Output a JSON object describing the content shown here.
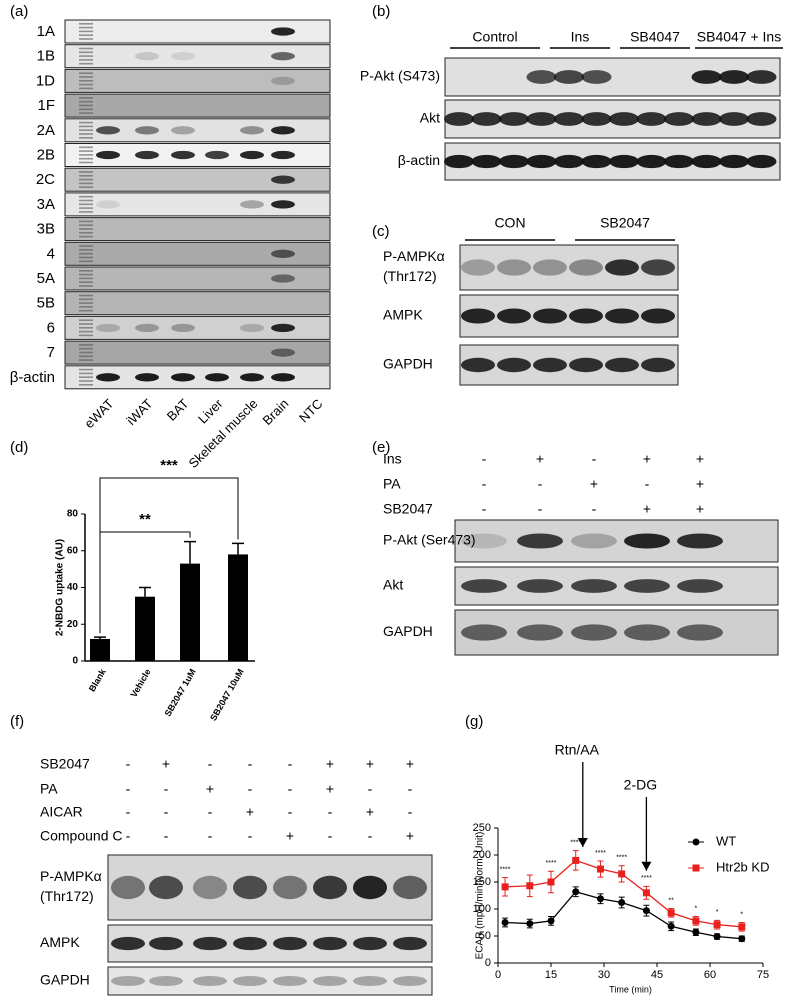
{
  "panel_a": {
    "label": "(a)",
    "rows": [
      "1A",
      "1B",
      "1D",
      "1F",
      "2A",
      "2B",
      "2C",
      "3A",
      "3B",
      "4",
      "5A",
      "5B",
      "6",
      "7",
      "β-actin"
    ],
    "lanes": [
      "eWAT",
      "iWAT",
      "BAT",
      "Liver",
      "Skeletal muscle",
      "Brain",
      "NTC"
    ]
  },
  "panel_b": {
    "label": "(b)",
    "groups": [
      "Control",
      "Ins",
      "SB4047",
      "SB4047 + Ins"
    ],
    "rows": [
      "P-Akt (S473)",
      "Akt",
      "β-actin"
    ]
  },
  "panel_c": {
    "label": "(c)",
    "groups": [
      "CON",
      "SB2047"
    ],
    "rows": [
      [
        "P-AMPKα",
        "(Thr172)"
      ],
      [
        "AMPK"
      ],
      [
        "GAPDH"
      ]
    ]
  },
  "panel_e": {
    "label": "(e)",
    "treatments": [
      {
        "name": "Ins",
        "signs": [
          "-",
          "+",
          "-",
          "+",
          "+"
        ]
      },
      {
        "name": "PA",
        "signs": [
          "-",
          "-",
          "+",
          "-",
          "+"
        ]
      },
      {
        "name": "SB2047",
        "signs": [
          "-",
          "-",
          "-",
          "+",
          "+"
        ]
      }
    ],
    "rows": [
      [
        "P-Akt (Ser473)"
      ],
      [
        "Akt"
      ],
      [
        "GAPDH"
      ]
    ]
  },
  "panel_f": {
    "label": "(f)",
    "treatments": [
      {
        "name": "SB2047",
        "signs": [
          "-",
          "+",
          "-",
          "-",
          "-",
          "+",
          "+",
          "+"
        ]
      },
      {
        "name": "PA",
        "signs": [
          "-",
          "-",
          "+",
          "-",
          "-",
          "+",
          "-",
          "-"
        ]
      },
      {
        "name": "AICAR",
        "signs": [
          "-",
          "-",
          "-",
          "+",
          "-",
          "-",
          "+",
          "-"
        ]
      },
      {
        "name": "Compound C",
        "signs": [
          "-",
          "-",
          "-",
          "-",
          "+",
          "-",
          "-",
          "+"
        ]
      }
    ],
    "rows": [
      [
        "P-AMPKα",
        "(Thr172)"
      ],
      [
        "AMPK"
      ],
      [
        "GAPDH"
      ]
    ]
  },
  "chart_data": [
    {
      "type": "bar",
      "label": "(d)",
      "y_label": "2-NBDG uptake (AU)",
      "categories": [
        "Blank",
        "Vehicle",
        "SB2047 1uM",
        "SB2047 10uM"
      ],
      "values": [
        12,
        35,
        53,
        58
      ],
      "errors": [
        1,
        5,
        12,
        6
      ],
      "color": "#000000",
      "ylim": [
        0,
        80
      ],
      "yticks": [
        0,
        20,
        40,
        60,
        80
      ],
      "significance": [
        {
          "from": "Blank",
          "to": "SB2047 1uM",
          "label": "**"
        },
        {
          "from": "Blank",
          "to": "SB2047 10uM",
          "label": "***"
        }
      ]
    },
    {
      "type": "line",
      "label": "(g)",
      "x_label": "Time (min)",
      "y_label": "ECAR (mpH/min/Norm. Unit)",
      "x": [
        2,
        9,
        15,
        22,
        29,
        35,
        42,
        49,
        56,
        62,
        69
      ],
      "series": [
        {
          "name": "WT",
          "color": "#000000",
          "marker": "circle",
          "values": [
            75,
            73,
            78,
            132,
            119,
            112,
            97,
            68,
            57,
            49,
            45
          ],
          "errors": [
            8,
            8,
            8,
            9,
            9,
            10,
            10,
            8,
            6,
            5,
            5
          ]
        },
        {
          "name": "Htr2b KD",
          "color": "#e8201e",
          "marker": "square",
          "values": [
            141,
            143,
            150,
            190,
            174,
            165,
            130,
            93,
            78,
            71,
            67
          ],
          "errors": [
            17,
            20,
            20,
            18,
            15,
            15,
            12,
            8,
            8,
            8,
            8
          ]
        }
      ],
      "significance": [
        "****",
        null,
        "****",
        "****",
        "****",
        "****",
        "****",
        "**",
        "*",
        "*",
        "*"
      ],
      "annotations": [
        {
          "text": "Rtn/AA",
          "x": 24
        },
        {
          "text": "2-DG",
          "x": 42
        }
      ],
      "xlim": [
        0,
        75
      ],
      "xticks": [
        0,
        15,
        30,
        45,
        60,
        75
      ],
      "ylim": [
        0,
        250
      ],
      "yticks": [
        0,
        50,
        100,
        150,
        200,
        250
      ],
      "legend": "upper right"
    }
  ]
}
